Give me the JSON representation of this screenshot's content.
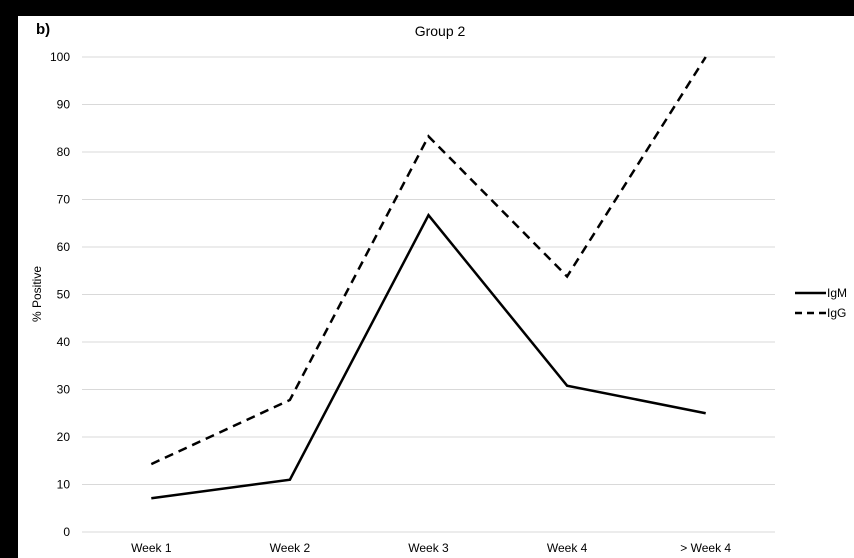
{
  "panel_label": "b)",
  "chart_data": {
    "type": "line",
    "title": "Group 2",
    "xlabel": "",
    "ylabel": "% Positive",
    "categories": [
      "Week 1",
      "Week 2",
      "Week 3",
      "Week 4",
      "> Week 4"
    ],
    "ylim": [
      0,
      100
    ],
    "yticks": [
      "0",
      "10",
      "20",
      "30",
      "40",
      "50",
      "60",
      "70",
      "80",
      "90",
      "100"
    ],
    "grid": true,
    "legend_position": "right",
    "series": [
      {
        "name": "IgM",
        "values": [
          7.1,
          11,
          66.7,
          30.8,
          25
        ],
        "color": "#000000",
        "style": "solid"
      },
      {
        "name": "IgG",
        "values": [
          14.3,
          27.8,
          83.3,
          53.8,
          100
        ],
        "color": "#000000",
        "style": "dashed"
      }
    ]
  }
}
